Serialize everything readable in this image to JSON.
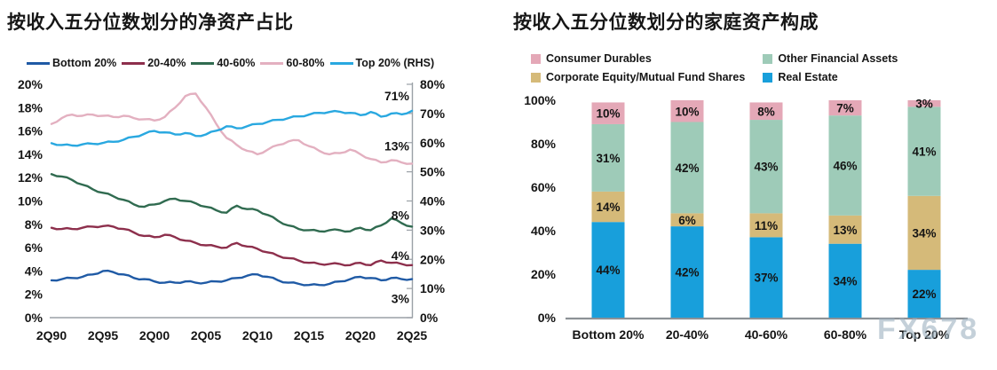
{
  "watermark": {
    "text": "FX678",
    "color": "#9db2c0"
  },
  "chart_data": [
    {
      "type": "line",
      "title": "按收入五分位数划分的净资产占比",
      "grid": false,
      "legend_position": "top",
      "x_tick_labels": [
        "2Q90",
        "2Q95",
        "2Q00",
        "2Q05",
        "2Q10",
        "2Q15",
        "2Q20",
        "2Q25"
      ],
      "x_tick_years": [
        1990,
        1995,
        2000,
        2005,
        2010,
        2015,
        2020,
        2025
      ],
      "years": [
        1990,
        1991,
        1992,
        1993,
        1994,
        1995,
        1996,
        1997,
        1998,
        1999,
        2000,
        2001,
        2002,
        2003,
        2004,
        2005,
        2006,
        2007,
        2008,
        2009,
        2010,
        2011,
        2012,
        2013,
        2014,
        2015,
        2016,
        2017,
        2018,
        2019,
        2020,
        2021,
        2022,
        2023,
        2024,
        2025
      ],
      "left_axis": {
        "min": 0,
        "max": 20,
        "tick_values": [
          0,
          2,
          4,
          6,
          8,
          10,
          12,
          14,
          16,
          18,
          20
        ],
        "tick_labels": [
          "0%",
          "2%",
          "4%",
          "6%",
          "8%",
          "10%",
          "12%",
          "14%",
          "16%",
          "18%",
          "20%"
        ]
      },
      "right_axis": {
        "min": 0,
        "max": 80,
        "tick_values": [
          0,
          10,
          20,
          30,
          40,
          50,
          60,
          70,
          80
        ],
        "tick_labels": [
          "0%",
          "10%",
          "20%",
          "30%",
          "40%",
          "50%",
          "60%",
          "70%",
          "80%"
        ]
      },
      "series": [
        {
          "name": "Bottom 20%",
          "axis": "left",
          "color": "#1f5aa5",
          "end_label": "3%",
          "end_label_dy": 27,
          "values": [
            3.2,
            3.3,
            3.4,
            3.5,
            3.7,
            4.0,
            3.9,
            3.7,
            3.4,
            3.3,
            3.1,
            3.0,
            3.0,
            3.1,
            3.0,
            3.0,
            3.1,
            3.2,
            3.4,
            3.6,
            3.7,
            3.5,
            3.2,
            3.0,
            2.9,
            2.8,
            2.8,
            2.9,
            3.1,
            3.3,
            3.5,
            3.4,
            3.2,
            3.4,
            3.3,
            3.3
          ]
        },
        {
          "name": "20-40%",
          "axis": "left",
          "color": "#8d2f4c",
          "end_label": "4%",
          "end_label_dy": -6,
          "values": [
            7.7,
            7.6,
            7.6,
            7.7,
            7.8,
            7.85,
            7.8,
            7.6,
            7.3,
            7.0,
            6.9,
            7.1,
            6.9,
            6.6,
            6.4,
            6.2,
            6.1,
            6.0,
            6.4,
            6.1,
            5.9,
            5.6,
            5.3,
            5.1,
            4.9,
            4.7,
            4.6,
            4.6,
            4.6,
            4.5,
            4.7,
            4.5,
            4.9,
            4.7,
            4.6,
            4.5
          ]
        },
        {
          "name": "40-60%",
          "axis": "left",
          "color": "#306b50",
          "end_label": "8%",
          "end_label_dy": -8,
          "values": [
            12.3,
            12.1,
            11.8,
            11.4,
            11.0,
            10.7,
            10.4,
            10.1,
            9.7,
            9.5,
            9.7,
            10.0,
            10.2,
            10.0,
            9.8,
            9.5,
            9.2,
            9.0,
            9.6,
            9.3,
            9.2,
            8.8,
            8.3,
            7.9,
            7.6,
            7.5,
            7.4,
            7.5,
            7.5,
            7.4,
            7.7,
            7.5,
            7.9,
            8.5,
            8.1,
            7.8
          ]
        },
        {
          "name": "60-80%",
          "axis": "left",
          "color": "#e3b0c0",
          "end_label": "13%",
          "end_label_dy": -15,
          "values": [
            16.6,
            17.1,
            17.4,
            17.3,
            17.4,
            17.3,
            17.2,
            17.3,
            17.1,
            17.0,
            16.9,
            17.2,
            18.0,
            19.0,
            19.2,
            18.0,
            16.6,
            15.4,
            14.8,
            14.3,
            14.0,
            14.4,
            14.8,
            15.1,
            15.2,
            14.7,
            14.3,
            14.0,
            14.1,
            14.4,
            14.0,
            13.6,
            13.3,
            13.5,
            13.3,
            13.2
          ]
        },
        {
          "name": "Top 20% (RHS)",
          "axis": "right",
          "color": "#29a8e0",
          "end_label": "71%",
          "end_label_dy": -12,
          "values": [
            59.8,
            59.2,
            59.0,
            59.4,
            59.6,
            59.9,
            60.3,
            61.0,
            62.0,
            63.0,
            64.0,
            63.5,
            62.8,
            63.3,
            62.3,
            62.8,
            64.1,
            65.6,
            64.9,
            65.6,
            66.4,
            67.1,
            67.8,
            68.4,
            69.0,
            69.6,
            70.2,
            70.5,
            70.6,
            70.2,
            69.4,
            70.5,
            68.9,
            70.0,
            69.7,
            70.9
          ]
        }
      ]
    },
    {
      "type": "bar",
      "stacked": true,
      "title": "按收入五分位数划分的家庭资产构成",
      "grid": false,
      "legend_position": "top",
      "labels_suffix": "%",
      "categories": [
        "Bottom 20%",
        "20-40%",
        "40-60%",
        "60-80%",
        "Top 20%"
      ],
      "y_axis": {
        "min": 0,
        "max": 100,
        "tick_values": [
          0,
          20,
          40,
          60,
          80,
          100
        ],
        "tick_labels": [
          "0%",
          "20%",
          "40%",
          "60%",
          "80%",
          "100%"
        ]
      },
      "series": [
        {
          "name": "Real Estate",
          "color": "#189fdb",
          "values": [
            44,
            42,
            37,
            34,
            22
          ]
        },
        {
          "name": "Corporate Equity/Mutual Fund Shares",
          "color": "#d5ba79",
          "values": [
            14,
            6,
            11,
            13,
            34
          ]
        },
        {
          "name": "Other Financial Assets",
          "color": "#9ecbb8",
          "values": [
            31,
            42,
            43,
            46,
            41
          ]
        },
        {
          "name": "Consumer Durables",
          "color": "#e4a8b7",
          "values": [
            10,
            10,
            8,
            7,
            3
          ]
        }
      ],
      "legend": [
        {
          "label": "Consumer Durables",
          "color": "#e4a8b7"
        },
        {
          "label": "Other Financial Assets",
          "color": "#9ecbb8"
        },
        {
          "label": "Corporate Equity/Mutual Fund Shares",
          "color": "#d5ba79"
        },
        {
          "label": "Real Estate",
          "color": "#189fdb"
        }
      ]
    }
  ]
}
